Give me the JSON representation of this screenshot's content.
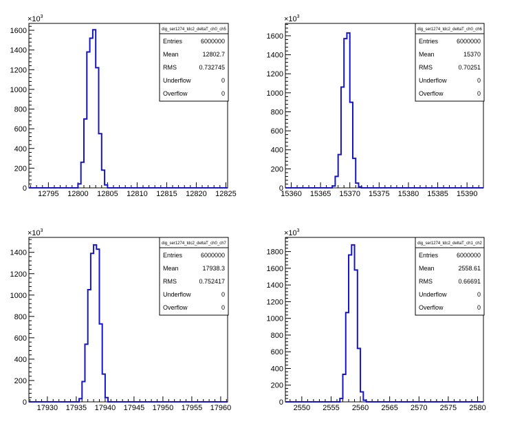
{
  "chart_data": [
    {
      "type": "histogram",
      "stats_title": "dig_ser1274_tdc2_deltaT_ch0_ch5",
      "stats": [
        {
          "label": "Entries",
          "value": "6000000"
        },
        {
          "label": "Mean",
          "value": "12802.7"
        },
        {
          "label": "RMS",
          "value": "0.732745"
        },
        {
          "label": "Underflow",
          "value": "0"
        },
        {
          "label": "Overflow",
          "value": "0"
        }
      ],
      "exponent_label": "×10",
      "exponent_power": "3",
      "xlim": [
        12791.7,
        12825.3
      ],
      "ylim": [
        0,
        1670
      ],
      "x_ticks": [
        12795,
        12800,
        12805,
        12810,
        12815,
        12820,
        12825
      ],
      "y_ticks": [
        0,
        200,
        400,
        600,
        800,
        1000,
        1200,
        1400,
        1600
      ],
      "bin_width": 0.5,
      "bins": [
        {
          "x": 12800.0,
          "y": 40
        },
        {
          "x": 12800.5,
          "y": 260
        },
        {
          "x": 12801.0,
          "y": 700
        },
        {
          "x": 12801.5,
          "y": 1380
        },
        {
          "x": 12802.0,
          "y": 1520
        },
        {
          "x": 12802.5,
          "y": 1605
        },
        {
          "x": 12803.0,
          "y": 1220
        },
        {
          "x": 12803.5,
          "y": 550
        },
        {
          "x": 12804.0,
          "y": 180
        },
        {
          "x": 12804.5,
          "y": 30
        }
      ]
    },
    {
      "type": "histogram",
      "stats_title": "dig_ser1274_tdc2_deltaT_ch0_ch6",
      "stats": [
        {
          "label": "Entries",
          "value": "6000000"
        },
        {
          "label": "Mean",
          "value": "15370"
        },
        {
          "label": "RMS",
          "value": "0.70251"
        },
        {
          "label": "Underflow",
          "value": "0"
        },
        {
          "label": "Overflow",
          "value": "0"
        }
      ],
      "exponent_label": "×10",
      "exponent_power": "3",
      "xlim": [
        15359.0,
        15392.8
      ],
      "ylim": [
        0,
        1730
      ],
      "x_ticks": [
        15360,
        15365,
        15370,
        15375,
        15380,
        15385,
        15390
      ],
      "y_ticks": [
        0,
        200,
        400,
        600,
        800,
        1000,
        1200,
        1400,
        1600
      ],
      "bin_width": 0.5,
      "bins": [
        {
          "x": 15367.0,
          "y": 20
        },
        {
          "x": 15367.5,
          "y": 120
        },
        {
          "x": 15368.0,
          "y": 350
        },
        {
          "x": 15368.5,
          "y": 1060
        },
        {
          "x": 15369.0,
          "y": 1570
        },
        {
          "x": 15369.5,
          "y": 1630
        },
        {
          "x": 15370.0,
          "y": 900
        },
        {
          "x": 15370.5,
          "y": 310
        },
        {
          "x": 15371.0,
          "y": 50
        },
        {
          "x": 15371.5,
          "y": 10
        }
      ]
    },
    {
      "type": "histogram",
      "stats_title": "dig_ser1274_tdc2_deltaT_ch0_ch7",
      "stats": [
        {
          "label": "Entries",
          "value": "6000000"
        },
        {
          "label": "Mean",
          "value": "17938.3"
        },
        {
          "label": "RMS",
          "value": "0.752417"
        },
        {
          "label": "Underflow",
          "value": "0"
        },
        {
          "label": "Overflow",
          "value": "0"
        }
      ],
      "exponent_label": "×10",
      "exponent_power": "3",
      "xlim": [
        17926.8,
        17961.2
      ],
      "ylim": [
        0,
        1540
      ],
      "x_ticks": [
        17930,
        17935,
        17940,
        17945,
        17950,
        17955,
        17960
      ],
      "y_ticks": [
        0,
        200,
        400,
        600,
        800,
        1000,
        1200,
        1400
      ],
      "bin_width": 0.5,
      "bins": [
        {
          "x": 17935.5,
          "y": 30
        },
        {
          "x": 17936.0,
          "y": 190
        },
        {
          "x": 17936.5,
          "y": 540
        },
        {
          "x": 17937.0,
          "y": 1050
        },
        {
          "x": 17937.5,
          "y": 1390
        },
        {
          "x": 17938.0,
          "y": 1470
        },
        {
          "x": 17938.5,
          "y": 1430
        },
        {
          "x": 17939.0,
          "y": 730
        },
        {
          "x": 17939.5,
          "y": 260
        },
        {
          "x": 17940.0,
          "y": 40
        }
      ]
    },
    {
      "type": "histogram",
      "stats_title": "dig_ser1274_tdc2_deltaT_ch1_ch2",
      "stats": [
        {
          "label": "Entries",
          "value": "6000000"
        },
        {
          "label": "Mean",
          "value": "2558.61"
        },
        {
          "label": "RMS",
          "value": "0.66691"
        },
        {
          "label": "Underflow",
          "value": "0"
        },
        {
          "label": "Overflow",
          "value": "0"
        }
      ],
      "exponent_label": "×10",
      "exponent_power": "3",
      "xlim": [
        2547.2,
        2581.0
      ],
      "ylim": [
        0,
        1970
      ],
      "x_ticks": [
        2550,
        2555,
        2560,
        2565,
        2570,
        2575,
        2580
      ],
      "y_ticks": [
        0,
        200,
        400,
        600,
        800,
        1000,
        1200,
        1400,
        1600,
        1800
      ],
      "bin_width": 0.5,
      "bins": [
        {
          "x": 2556.5,
          "y": 40
        },
        {
          "x": 2557.0,
          "y": 330
        },
        {
          "x": 2557.5,
          "y": 1070
        },
        {
          "x": 2558.0,
          "y": 1760
        },
        {
          "x": 2558.5,
          "y": 1880
        },
        {
          "x": 2559.0,
          "y": 1580
        },
        {
          "x": 2559.5,
          "y": 640
        },
        {
          "x": 2560.0,
          "y": 120
        },
        {
          "x": 2560.5,
          "y": 20
        }
      ]
    }
  ]
}
